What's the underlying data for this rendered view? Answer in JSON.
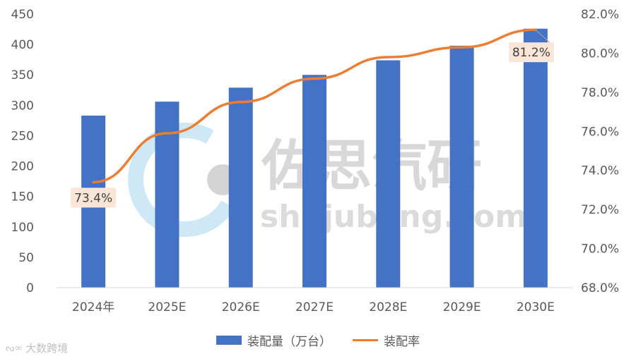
{
  "chart_data": {
    "type": "bar+line",
    "categories": [
      "2024年",
      "2025E",
      "2026E",
      "2027E",
      "2028E",
      "2029E",
      "2030E"
    ],
    "series": [
      {
        "name": "装配量（万台）",
        "type": "bar",
        "axis": "left",
        "values": [
          283,
          306,
          329,
          350,
          374,
          398,
          426
        ]
      },
      {
        "name": "装配率",
        "type": "line",
        "axis": "right",
        "values": [
          73.4,
          75.9,
          77.5,
          78.7,
          79.8,
          80.3,
          81.2
        ]
      }
    ],
    "y_left": {
      "min": 0,
      "max": 450,
      "step": 50
    },
    "y_right": {
      "min": 68.0,
      "max": 82.0,
      "step": 2.0,
      "suffix": "%"
    },
    "data_labels": [
      {
        "series": "装配率",
        "category": "2024年",
        "text": "73.4%"
      },
      {
        "series": "装配率",
        "category": "2030E",
        "text": "81.2%"
      }
    ],
    "colors": {
      "bar": "#4472c4",
      "line": "#ed7d31",
      "label_bg": "#fbe5d6"
    },
    "legend_position": "bottom",
    "grid": false
  },
  "watermark": {
    "brand": "佐思汽研",
    "site": "shujubang.com",
    "corner": "大数跨境",
    "corner_icon": "weibo-icon"
  }
}
